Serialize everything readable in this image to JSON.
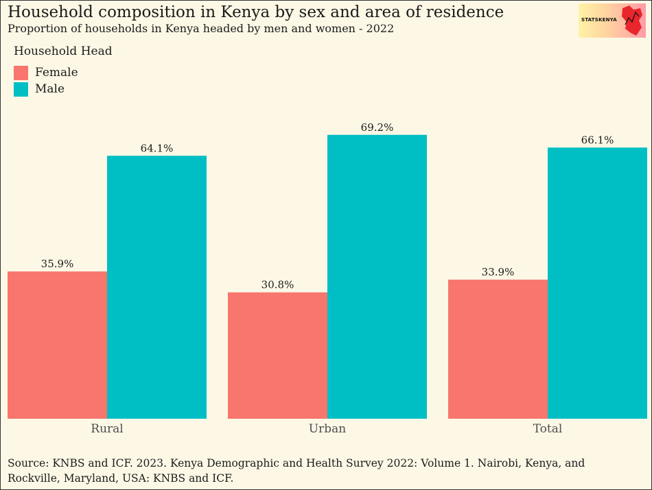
{
  "title": "Household composition in Kenya by sex and area of residence",
  "subtitle": "Proportion of households in Kenya headed by men and women - 2022",
  "logo_text": "STATSKENYA",
  "legend": {
    "title": "Household Head",
    "items": [
      {
        "label": "Female",
        "color": "#f8766d"
      },
      {
        "label": "Male",
        "color": "#00bfc4"
      }
    ]
  },
  "source": "Source: KNBS and ICF. 2023. Kenya Demographic and Health Survey 2022: Volume 1. Nairobi, Kenya, and Rockville, Maryland, USA: KNBS and ICF.",
  "chart_data": {
    "type": "bar",
    "categories": [
      "Rural",
      "Urban",
      "Total"
    ],
    "series": [
      {
        "name": "Female",
        "color": "#f8766d",
        "values": [
          35.9,
          30.8,
          33.9
        ],
        "labels": [
          "35.9%",
          "30.8%",
          "33.9%"
        ]
      },
      {
        "name": "Male",
        "color": "#00bfc4",
        "values": [
          64.1,
          69.2,
          66.1
        ],
        "labels": [
          "64.1%",
          "69.2%",
          "66.1%"
        ]
      }
    ],
    "ylim": [
      0,
      72
    ],
    "legend_position": "top-left",
    "grid": false
  }
}
